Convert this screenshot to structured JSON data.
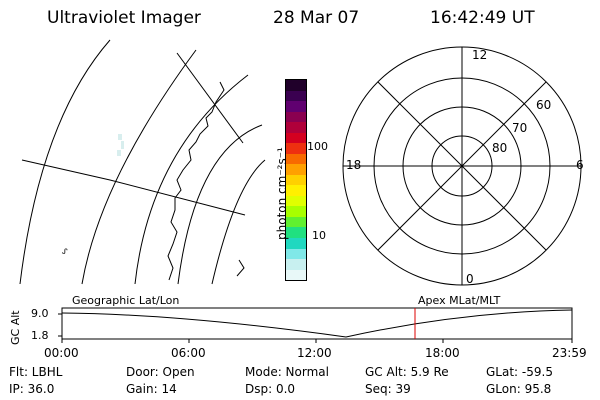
{
  "header": {
    "instrument": "Ultraviolet Imager",
    "date": "28 Mar 07",
    "time": "16:42:49 UT"
  },
  "colorbar": {
    "unit_label": "photon cm⁻²s⁻¹",
    "tick_100": "100",
    "tick_10": "10",
    "colors_top_to_bottom": [
      "#20002a",
      "#3a0050",
      "#600070",
      "#8a0050",
      "#b0003a",
      "#d40020",
      "#ee3010",
      "#f86a00",
      "#ffa000",
      "#ffd000",
      "#fff000",
      "#e0ff00",
      "#a8ff00",
      "#60f030",
      "#20e080",
      "#20d8c0",
      "#80e8e8",
      "#c8f0f0",
      "#e8f8f8"
    ]
  },
  "polar_plot": {
    "mlt_top": "12",
    "mlt_bottom": "0",
    "mlt_left": "18",
    "mlt_right": "6",
    "lat_60": "60",
    "lat_70": "70",
    "lat_80": "80"
  },
  "altitude_panel": {
    "left_label": "Geographic Lat/Lon",
    "right_label": "Apex MLat/MLT",
    "y_title": "GC Alt",
    "y_max": "9.0",
    "y_min": "1.8",
    "x_ticks": [
      "00:00",
      "06:00",
      "12:00",
      "18:00",
      "23:59"
    ],
    "marker_color": "#dd0000"
  },
  "info": {
    "filter": "Flt: LBHL",
    "ip": "IP: 36.0",
    "door": "Door: Open",
    "gain": "Gain: 14",
    "mode": "Mode: Normal",
    "dsp": "Dsp:    0.0",
    "gc_alt": "GC Alt: 5.9 Re",
    "seq": "Seq: 39",
    "glat": "GLat: -59.5",
    "glon": "GLon:  95.8"
  }
}
